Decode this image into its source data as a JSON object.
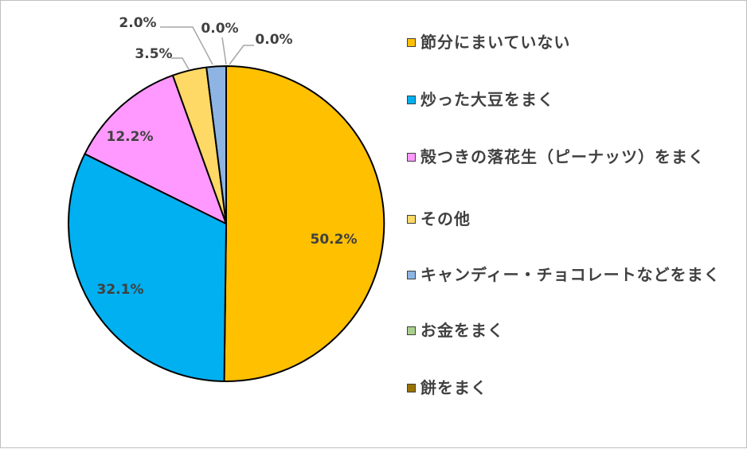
{
  "chart_data": {
    "type": "pie",
    "title": "",
    "categories": [
      "節分にまいていない",
      "炒った大豆をまく",
      "殻つきの落花生（ピーナッツ）をまく",
      "その他",
      "キャンディー・チョコレートなどをまく",
      "お金をまく",
      "餅をまく"
    ],
    "values": [
      50.2,
      32.1,
      12.2,
      3.5,
      2.0,
      0.0,
      0.0
    ],
    "value_labels": [
      "50.2%",
      "32.1%",
      "12.2%",
      "3.5%",
      "2.0%",
      "0.0%",
      "0.0%"
    ],
    "colors": [
      "#FFC000",
      "#00B0F0",
      "#FF99FF",
      "#FFD966",
      "#8DB4E2",
      "#A9D08E",
      "#997300"
    ],
    "start_angle_deg": 0,
    "direction": "clockwise",
    "legend_position": "right"
  }
}
